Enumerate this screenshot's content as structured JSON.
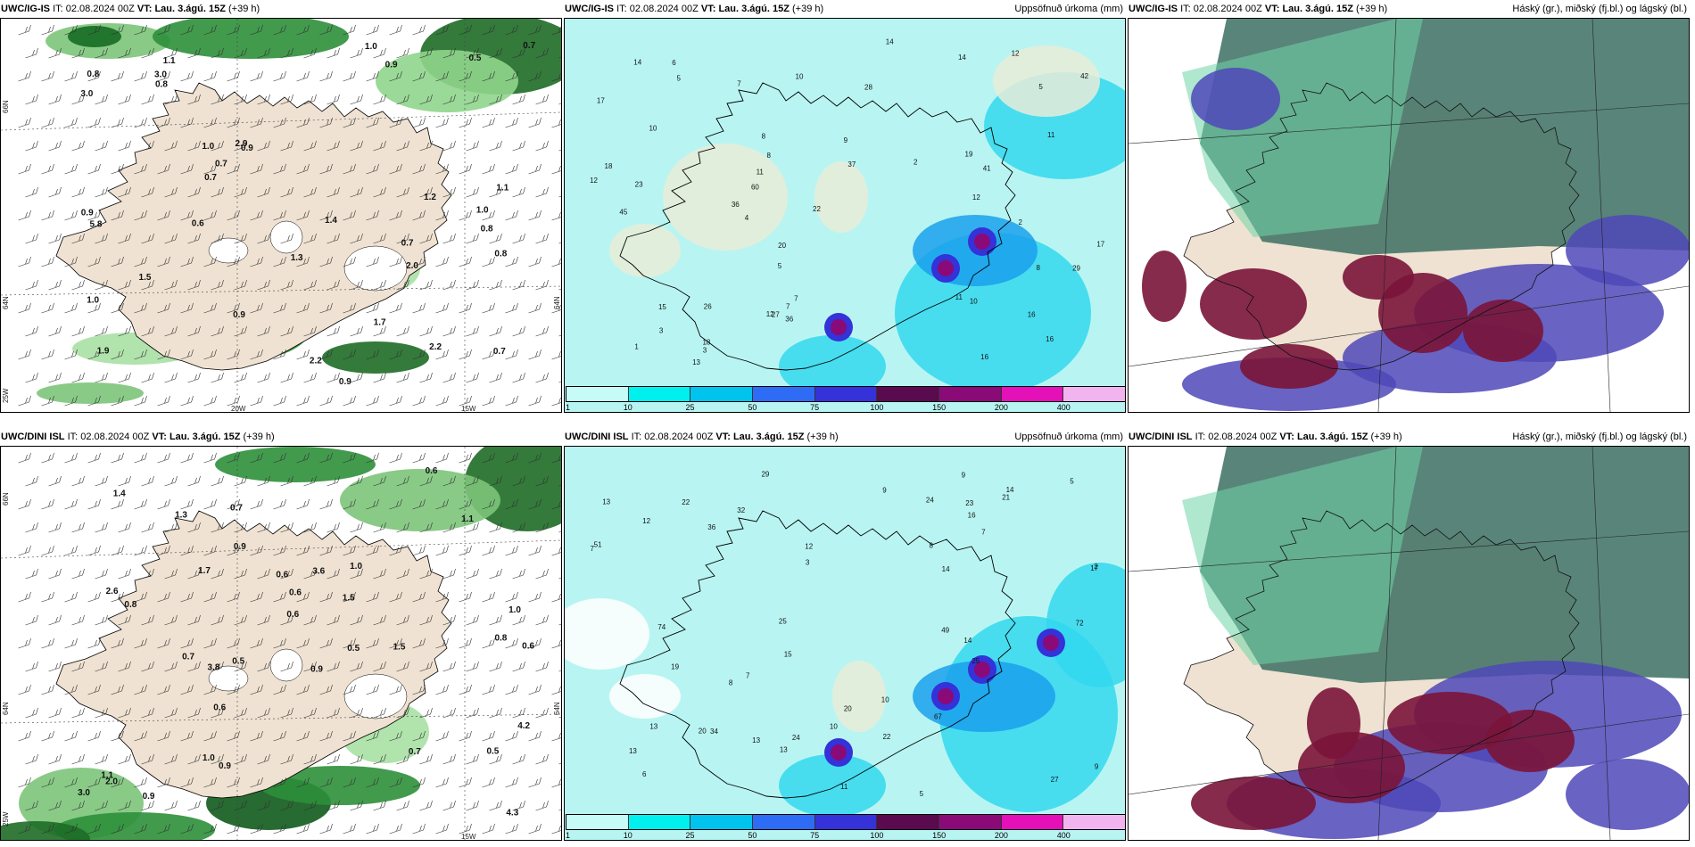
{
  "panels": [
    {
      "model": "UWC/IG-IS",
      "it_label": "IT:",
      "it": "02.08.2024 00Z",
      "vt_label": "VT:",
      "vt": "Lau. 3.ágú. 15Z",
      "lead": "(+39 h)",
      "right_title": "",
      "kind": "wind",
      "axis_labels": [
        "66N",
        "64N",
        "25W",
        "20W",
        "15W",
        "64N"
      ],
      "values": [
        "0.7",
        "0.8",
        "1.9",
        "1.1",
        "0.9",
        "2.2",
        "1.0",
        "0.9",
        "1.0",
        "0.9",
        "3.0",
        "0.9",
        "0.8",
        "0.7",
        "0.9",
        "1.1",
        "1.3",
        "1.4",
        "2.9",
        "1.5",
        "0.7",
        "0.5",
        "0.7",
        "0.8",
        "1.0",
        "3.0",
        "2.0",
        "5.8",
        "0.8",
        "1.2",
        "2.2",
        "1.7",
        "0.7",
        "0.6",
        "1.0"
      ]
    },
    {
      "model": "UWC/IG-IS",
      "it_label": "IT:",
      "it": "02.08.2024 00Z",
      "vt_label": "VT:",
      "vt": "Lau. 3.ágú. 15Z",
      "lead": "(+39 h)",
      "right_title": "Uppsöfnuð úrkoma (mm)",
      "kind": "precip",
      "values": [
        "14",
        "11",
        "7",
        "7",
        "12",
        "10",
        "2",
        "5",
        "19",
        "20",
        "16",
        "11",
        "8",
        "16",
        "12",
        "14",
        "11",
        "17",
        "42",
        "23",
        "29",
        "26",
        "8",
        "13",
        "36",
        "37",
        "15",
        "22",
        "27",
        "45",
        "17",
        "41",
        "60",
        "36",
        "18",
        "18",
        "16",
        "28",
        "10",
        "12",
        "14",
        "12",
        "10",
        "9",
        "3",
        "6",
        "2",
        "1",
        "5",
        "4",
        "7",
        "8",
        "5",
        "3"
      ]
    },
    {
      "model": "UWC/IG-IS",
      "it_label": "IT:",
      "it": "02.08.2024 00Z",
      "vt_label": "VT:",
      "vt": "Lau. 3.ágú. 15Z",
      "lead": "(+39 h)",
      "right_title": "Háský (gr.), miðský (fj.bl.) og lágský (bl.)",
      "kind": "cloud"
    },
    {
      "model": "UWC/DINI ISL",
      "it_label": "IT:",
      "it": "02.08.2024 00Z",
      "vt_label": "VT:",
      "vt": "Lau. 3.ágú. 15Z",
      "lead": "(+39 h)",
      "right_title": "",
      "kind": "wind",
      "axis_labels": [
        "66N",
        "64N",
        "25W",
        "15W",
        "64N"
      ],
      "values": [
        "1.0",
        "0.7",
        "0.6",
        "0.9",
        "1.4",
        "1.5",
        "3.0",
        "0.6",
        "0.7",
        "1.3",
        "1.7",
        "1.1",
        "1.1",
        "0.9",
        "0.5",
        "0.6",
        "0.5",
        "4.3",
        "2.6",
        "0.8",
        "2.0",
        "4.2",
        "3.6",
        "0.9",
        "0.6",
        "0.9",
        "0.6",
        "0.8",
        "1.0",
        "3.8",
        "1.5",
        "1.0",
        "0.5",
        "0.6",
        "0.7"
      ]
    },
    {
      "model": "UWC/DINI ISL",
      "it_label": "IT:",
      "it": "02.08.2024 00Z",
      "vt_label": "VT:",
      "vt": "Lau. 3.ágú. 15Z",
      "lead": "(+39 h)",
      "right_title": "Uppsöfnuð úrkoma (mm)",
      "kind": "precip",
      "values": [
        "15",
        "9",
        "8",
        "7",
        "11",
        "13",
        "29",
        "20",
        "27",
        "14",
        "20",
        "7",
        "13",
        "24",
        "21",
        "25",
        "51",
        "22",
        "74",
        "72",
        "67",
        "49",
        "16",
        "12",
        "13",
        "25",
        "19",
        "24",
        "32",
        "36",
        "34",
        "23",
        "17",
        "22",
        "13",
        "14",
        "9",
        "10",
        "14",
        "9",
        "5",
        "3",
        "2",
        "5",
        "6",
        "8",
        "7",
        "13",
        "12",
        "10"
      ]
    },
    {
      "model": "UWC/DINI ISL",
      "it_label": "IT:",
      "it": "02.08.2024 00Z",
      "vt_label": "VT:",
      "vt": "Lau. 3.ágú. 15Z",
      "lead": "(+39 h)",
      "right_title": "Háský (gr.), miðský (fj.bl.) og lágský (bl.)",
      "kind": "cloud"
    }
  ],
  "colorbar": {
    "labels": [
      "1",
      "10",
      "25",
      "50",
      "75",
      "100",
      "150",
      "200",
      "400"
    ],
    "colors": [
      "#c6fbf8",
      "#00f0f0",
      "#00c4ee",
      "#2e6cf6",
      "#3432d8",
      "#5a0a4e",
      "#8a0a78",
      "#e410b8",
      "#f2b4ee"
    ]
  }
}
